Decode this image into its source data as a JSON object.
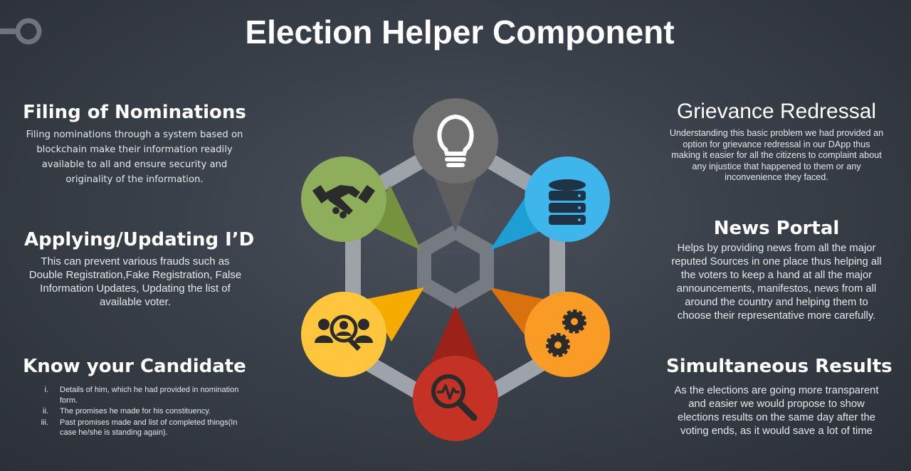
{
  "title": "Election Helper Component",
  "colors": {
    "background": "#3a4049",
    "lightbulb": "#6f6f6f",
    "handshake": "#8fae5b",
    "database": "#3fb6eb",
    "team_search": "#ffc53c",
    "gears": "#f99b24",
    "analysis": "#c43225",
    "hex_frame": "#9ea2a9"
  },
  "icons": {
    "corner": "key-ring-icon",
    "top": "lightbulb-icon",
    "upper_left": "handshake-icon",
    "upper_right": "database-icon",
    "lower_left": "people-search-icon",
    "lower_right": "gears-icon",
    "bottom": "analytics-magnifier-icon"
  },
  "left": {
    "filing": {
      "heading": "Filing of Nominations",
      "body": "Filing nominations through a system based on blockchain make their information readily available to all and ensure security and originality of the information."
    },
    "applying": {
      "heading": "Applying/Updating I’D",
      "body": "This can prevent various frauds such as Double Registration,Fake Registration, False Information Updates, Updating the list of available voter."
    },
    "candidate": {
      "heading": "Know your Candidate",
      "items": [
        {
          "num": "i.",
          "text": "Details of him, which he had provided in nomination form."
        },
        {
          "num": "ii.",
          "text": "The promises he made for his constituency."
        },
        {
          "num": "iii.",
          "text": "Past promises made and list of completed things(In case he/she is standing again)."
        }
      ]
    }
  },
  "right": {
    "grievance": {
      "heading": "Grievance Redressal",
      "body": "Understanding this basic problem we had provided an option for grievance redressal in our DApp thus making it easier for all the citizens to complaint about any injustice that happened to them or any inconvenience they faced."
    },
    "news": {
      "heading": "News Portal",
      "body": "Helps by providing news from all the major reputed Sources in one place thus helping all the voters to keep a hand at all the major announcements, manifestos, news from all around the country and helping them to choose their representative more carefully."
    },
    "results": {
      "heading": "Simultaneous Results",
      "body": "As the elections are going more transparent and easier we would propose to show elections results on the same day after the voting ends, as it would save a lot of time"
    }
  }
}
